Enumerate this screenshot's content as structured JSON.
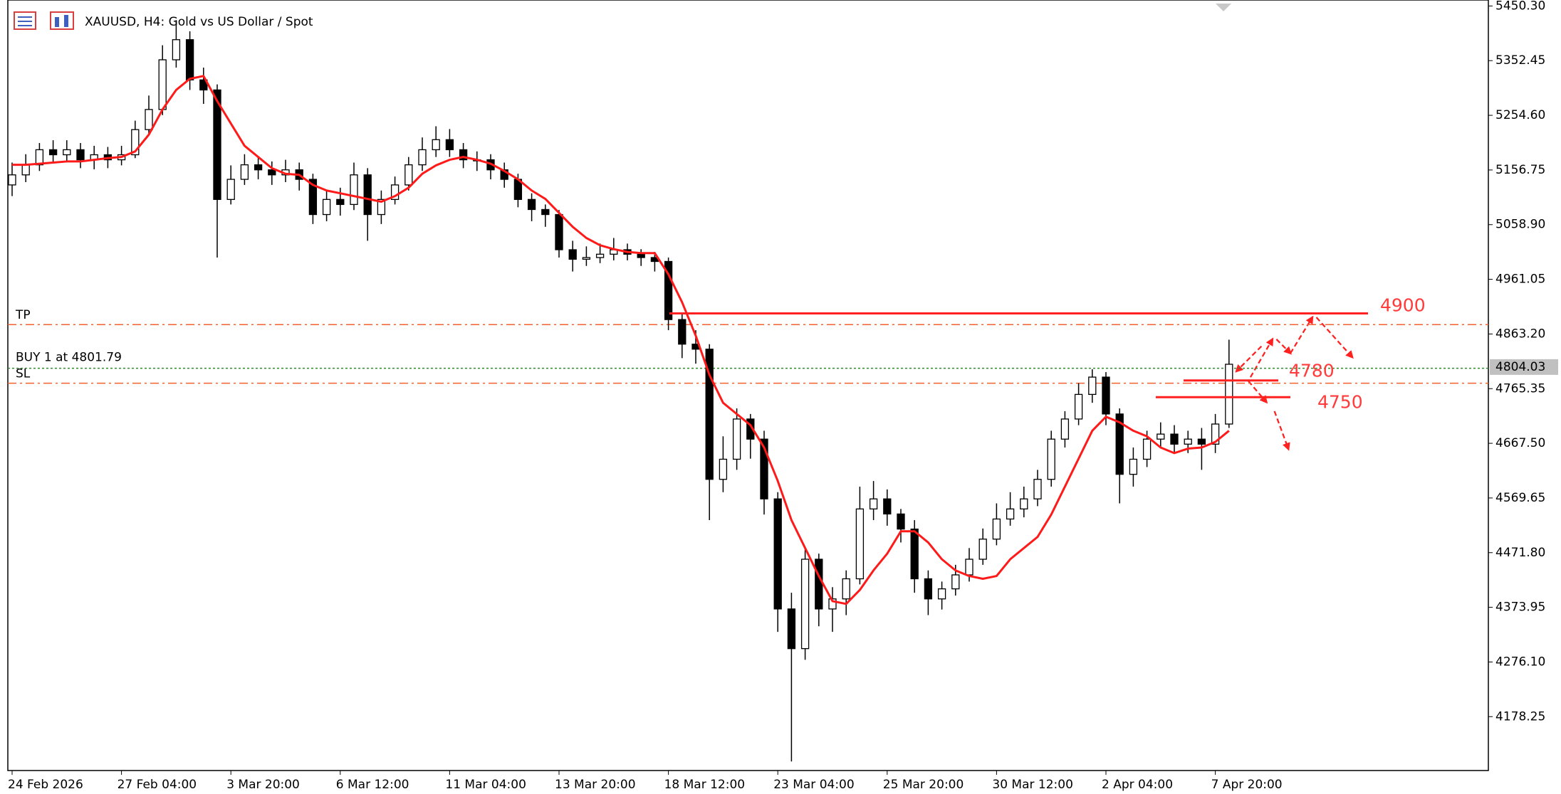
{
  "window": {
    "title": "XAUUSD, H4:  Gold vs US Dollar / Spot"
  },
  "chart_data": {
    "type": "candlestick",
    "categories": [
      "24 Feb 2026",
      null,
      null,
      null,
      null,
      null,
      null,
      null,
      "27 Feb 04:00",
      null,
      null,
      null,
      null,
      null,
      null,
      null,
      "3 Mar 20:00",
      null,
      null,
      null,
      null,
      null,
      null,
      null,
      "6 Mar 12:00",
      null,
      null,
      null,
      null,
      null,
      null,
      null,
      "11 Mar 04:00",
      null,
      null,
      null,
      null,
      null,
      null,
      null,
      "13 Mar 20:00",
      null,
      null,
      null,
      null,
      null,
      null,
      null,
      "18 Mar 12:00",
      null,
      null,
      null,
      null,
      null,
      null,
      null,
      "23 Mar 04:00",
      null,
      null,
      null,
      null,
      null,
      null,
      null,
      "25 Mar 20:00",
      null,
      null,
      null,
      null,
      null,
      null,
      null,
      "30 Mar 12:00",
      null,
      null,
      null,
      null,
      null,
      null,
      null,
      "2 Apr 04:00",
      null,
      null,
      null,
      null,
      null,
      null,
      null,
      "7 Apr 20:00",
      null
    ],
    "open": [
      5130,
      5148,
      5166,
      5193,
      5184,
      5193,
      5175,
      5184,
      5175,
      5184,
      5229,
      5265,
      5354,
      5390,
      5318,
      5300,
      5104,
      5140,
      5166,
      5157,
      5148,
      5157,
      5140,
      5077,
      5104,
      5095,
      5148,
      5077,
      5104,
      5130,
      5166,
      5193,
      5211,
      5193,
      5175,
      5175,
      5157,
      5140,
      5104,
      5086,
      5077,
      5014,
      4997,
      5000,
      5006,
      5014,
      5006,
      5000,
      4993,
      4889,
      4845,
      4836,
      4603,
      4639,
      4711,
      4675,
      4568,
      4371,
      4300,
      4460,
      4371,
      4389,
      4425,
      4550,
      4568,
      4541,
      4514,
      4425,
      4389,
      4407,
      4432,
      4460,
      4496,
      4532,
      4550,
      4568,
      4603,
      4675,
      4711,
      4755,
      4786,
      4720,
      4612,
      4639,
      4675,
      4684,
      4666,
      4675,
      4666,
      4702
    ],
    "high": [
      5170,
      5185,
      5205,
      5210,
      5210,
      5205,
      5200,
      5198,
      5200,
      5245,
      5290,
      5380,
      5425,
      5405,
      5340,
      5310,
      5165,
      5185,
      5180,
      5172,
      5175,
      5170,
      5150,
      5120,
      5125,
      5170,
      5160,
      5120,
      5145,
      5180,
      5215,
      5235,
      5230,
      5205,
      5190,
      5185,
      5170,
      5150,
      5115,
      5095,
      5085,
      5030,
      5020,
      5025,
      5035,
      5025,
      5015,
      5010,
      5000,
      4900,
      4870,
      4845,
      4680,
      4730,
      4720,
      4690,
      4580,
      4400,
      4480,
      4470,
      4410,
      4440,
      4590,
      4600,
      4585,
      4550,
      4530,
      4440,
      4420,
      4450,
      4480,
      4515,
      4560,
      4580,
      4590,
      4620,
      4690,
      4725,
      4775,
      4800,
      4795,
      4730,
      4660,
      4690,
      4705,
      4700,
      4690,
      4695,
      4720,
      4853
    ],
    "low": [
      5110,
      5135,
      5155,
      5170,
      5172,
      5160,
      5158,
      5160,
      5165,
      5178,
      5220,
      5255,
      5340,
      5300,
      5275,
      5000,
      5095,
      5130,
      5140,
      5130,
      5135,
      5120,
      5060,
      5065,
      5075,
      5085,
      5030,
      5060,
      5095,
      5120,
      5155,
      5180,
      5180,
      5160,
      5155,
      5140,
      5125,
      5090,
      5065,
      5055,
      5000,
      4975,
      4985,
      4990,
      4995,
      4995,
      4985,
      4975,
      4870,
      4820,
      4810,
      4530,
      4580,
      4620,
      4640,
      4540,
      4330,
      4098,
      4280,
      4340,
      4330,
      4360,
      4415,
      4530,
      4520,
      4490,
      4400,
      4360,
      4370,
      4395,
      4420,
      4450,
      4485,
      4520,
      4535,
      4555,
      4590,
      4660,
      4700,
      4740,
      4700,
      4560,
      4590,
      4625,
      4660,
      4650,
      4650,
      4620,
      4650,
      4695
    ],
    "close": [
      5148,
      5166,
      5193,
      5184,
      5193,
      5175,
      5184,
      5175,
      5184,
      5229,
      5265,
      5354,
      5390,
      5318,
      5300,
      5104,
      5140,
      5166,
      5157,
      5148,
      5157,
      5140,
      5077,
      5104,
      5095,
      5148,
      5077,
      5104,
      5130,
      5166,
      5193,
      5211,
      5193,
      5175,
      5175,
      5157,
      5140,
      5104,
      5086,
      5077,
      5014,
      4997,
      5000,
      5006,
      5014,
      5006,
      5000,
      4993,
      4889,
      4845,
      4836,
      4603,
      4639,
      4711,
      4675,
      4568,
      4371,
      4300,
      4460,
      4371,
      4389,
      4425,
      4550,
      4568,
      4541,
      4514,
      4425,
      4389,
      4407,
      4432,
      4460,
      4496,
      4532,
      4550,
      4568,
      4603,
      4675,
      4711,
      4755,
      4786,
      4720,
      4612,
      4639,
      4675,
      4684,
      4666,
      4675,
      4666,
      4702,
      4809
    ],
    "up_color": "#ffffff",
    "down_color": "#000000",
    "ma": {
      "color": "#ff1a1a",
      "values": [
        5166,
        5166,
        5168,
        5170,
        5172,
        5172,
        5175,
        5178,
        5180,
        5190,
        5220,
        5265,
        5300,
        5320,
        5325,
        5280,
        5240,
        5200,
        5180,
        5160,
        5150,
        5148,
        5130,
        5120,
        5115,
        5110,
        5105,
        5100,
        5110,
        5125,
        5150,
        5165,
        5175,
        5180,
        5175,
        5168,
        5155,
        5140,
        5120,
        5105,
        5080,
        5055,
        5035,
        5022,
        5015,
        5010,
        5008,
        5008,
        4970,
        4920,
        4860,
        4790,
        4740,
        4720,
        4700,
        4660,
        4600,
        4530,
        4480,
        4430,
        4385,
        4380,
        4405,
        4440,
        4470,
        4510,
        4510,
        4490,
        4460,
        4440,
        4430,
        4425,
        4430,
        4460,
        4480,
        4500,
        4540,
        4590,
        4640,
        4690,
        4715,
        4705,
        4690,
        4680,
        4660,
        4650,
        4658,
        4660,
        4670,
        4690
      ]
    },
    "ylim": [
      4081.8,
      5461
    ],
    "yticks": [
      {
        "value": 5450.3,
        "label": "5450.30"
      },
      5352.45,
      {
        "value": 5254.6,
        "label": "5254.60"
      },
      5156.75,
      {
        "value": 5058.9,
        "label": "5058.90"
      },
      4961.05,
      {
        "value": 4863.2,
        "label": "4863.20"
      },
      4765.35,
      {
        "value": 4667.5,
        "label": "4667.50"
      },
      4569.65,
      {
        "value": 4471.8,
        "label": "4471.80"
      },
      4373.95,
      {
        "value": 4276.1,
        "label": "4276.10"
      },
      4178.25
    ],
    "bid": 4804.03,
    "trade": {
      "tp": 4880,
      "tp_label": "TP",
      "sl": 4775,
      "sl_label": "SL",
      "entry": 4801.79,
      "entry_label": "BUY 1 at 4801.79",
      "color": "#f4602e",
      "entry_color": "#2e8b2e"
    },
    "levels": [
      4900,
      4780,
      4750
    ],
    "level_color": "#ff2020"
  }
}
